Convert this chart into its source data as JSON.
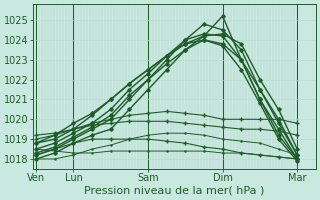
{
  "bg_color": "#c8e8e0",
  "plot_bg_color": "#c8e8e0",
  "grid_color_v": "#b0d4cc",
  "grid_color_h": "#b8d8d0",
  "line_color": "#1e5c28",
  "ylim": [
    1017.5,
    1025.8
  ],
  "ylabel_ticks": [
    1018,
    1019,
    1020,
    1021,
    1022,
    1023,
    1024,
    1025
  ],
  "xlabel": "Pression niveau de la mer( hPa )",
  "xtick_labels": [
    "Ven",
    "Lun",
    "Sam",
    "Dim",
    "Mar"
  ],
  "xtick_positions": [
    0,
    12,
    36,
    60,
    84
  ],
  "xlim": [
    -1,
    90
  ],
  "label_fontsize": 8,
  "tick_fontsize": 7,
  "series": [
    {
      "x": [
        0,
        6,
        12,
        18,
        24,
        30,
        36,
        42,
        48,
        54,
        60,
        66,
        72,
        78,
        84
      ],
      "y": [
        1018.0,
        1018.3,
        1018.8,
        1019.2,
        1019.5,
        1020.5,
        1021.5,
        1022.5,
        1023.5,
        1024.2,
        1025.2,
        1023.0,
        1021.0,
        1019.5,
        1018.0
      ],
      "lw": 1.0,
      "marker": "D",
      "ms": 1.8
    },
    {
      "x": [
        0,
        6,
        12,
        18,
        24,
        30,
        36,
        42,
        48,
        54,
        60,
        66,
        72,
        78,
        84
      ],
      "y": [
        1018.2,
        1018.5,
        1019.0,
        1019.5,
        1020.0,
        1021.0,
        1022.0,
        1023.0,
        1024.0,
        1024.8,
        1024.5,
        1023.5,
        1021.5,
        1020.0,
        1018.2
      ],
      "lw": 1.0,
      "marker": "D",
      "ms": 1.8
    },
    {
      "x": [
        0,
        6,
        12,
        18,
        24,
        30,
        36,
        42,
        48,
        54,
        60,
        66,
        72,
        78,
        84
      ],
      "y": [
        1018.5,
        1018.8,
        1019.3,
        1019.8,
        1020.5,
        1021.5,
        1022.3,
        1023.2,
        1024.0,
        1024.3,
        1024.2,
        1023.0,
        1021.0,
        1019.2,
        1018.0
      ],
      "lw": 1.0,
      "marker": "D",
      "ms": 1.8
    },
    {
      "x": [
        0,
        6,
        12,
        18,
        24,
        30,
        36,
        42,
        48,
        54,
        60,
        66,
        72,
        78,
        84
      ],
      "y": [
        1018.8,
        1019.0,
        1019.5,
        1020.2,
        1021.0,
        1021.8,
        1022.5,
        1023.2,
        1023.8,
        1024.0,
        1023.8,
        1023.0,
        1021.5,
        1019.8,
        1018.2
      ],
      "lw": 1.0,
      "marker": "D",
      "ms": 1.8
    },
    {
      "x": [
        0,
        6,
        12,
        18,
        24,
        30,
        36,
        42,
        48,
        54,
        60,
        66,
        72,
        78,
        84
      ],
      "y": [
        1018.3,
        1018.6,
        1019.1,
        1019.6,
        1020.2,
        1021.2,
        1022.0,
        1022.8,
        1023.5,
        1024.0,
        1023.7,
        1022.5,
        1020.8,
        1019.0,
        1017.9
      ],
      "lw": 1.0,
      "marker": "D",
      "ms": 1.8
    },
    {
      "x": [
        0,
        6,
        12,
        18,
        24,
        30,
        36,
        42,
        48,
        54,
        60,
        66,
        72,
        78,
        84
      ],
      "y": [
        1019.0,
        1019.2,
        1019.5,
        1019.8,
        1020.0,
        1020.2,
        1020.3,
        1020.4,
        1020.3,
        1020.2,
        1020.0,
        1020.0,
        1020.0,
        1020.0,
        1019.8
      ],
      "lw": 0.8,
      "marker": "+",
      "ms": 2.5
    },
    {
      "x": [
        0,
        6,
        12,
        18,
        24,
        30,
        36,
        42,
        48,
        54,
        60,
        66,
        72,
        78,
        84
      ],
      "y": [
        1019.2,
        1019.3,
        1019.5,
        1019.7,
        1019.8,
        1019.9,
        1019.9,
        1019.9,
        1019.8,
        1019.7,
        1019.6,
        1019.5,
        1019.5,
        1019.4,
        1019.2
      ],
      "lw": 0.8,
      "marker": "+",
      "ms": 2.5
    },
    {
      "x": [
        0,
        6,
        12,
        18,
        24,
        30,
        36,
        42,
        48,
        54,
        60,
        66,
        72,
        78,
        84
      ],
      "y": [
        1018.2,
        1018.5,
        1018.8,
        1019.0,
        1019.0,
        1019.0,
        1019.0,
        1018.9,
        1018.8,
        1018.6,
        1018.5,
        1018.3,
        1018.2,
        1018.1,
        1018.0
      ],
      "lw": 0.8,
      "marker": "+",
      "ms": 2.5
    },
    {
      "x": [
        0,
        6,
        12,
        18,
        24,
        30,
        36,
        42,
        48,
        54,
        60,
        66,
        72,
        78,
        84
      ],
      "y": [
        1018.0,
        1018.0,
        1018.2,
        1018.5,
        1018.7,
        1019.0,
        1019.2,
        1019.3,
        1019.3,
        1019.2,
        1019.0,
        1018.9,
        1018.8,
        1018.5,
        1018.2
      ],
      "lw": 0.7,
      "marker": ".",
      "ms": 1.5
    },
    {
      "x": [
        0,
        6,
        12,
        18,
        24,
        30,
        36,
        42,
        48,
        54,
        60,
        66,
        72,
        78,
        84
      ],
      "y": [
        1018.5,
        1018.4,
        1018.3,
        1018.3,
        1018.4,
        1018.4,
        1018.4,
        1018.4,
        1018.4,
        1018.4,
        1018.3,
        1018.3,
        1018.2,
        1018.1,
        1018.0
      ],
      "lw": 0.7,
      "marker": ".",
      "ms": 1.5
    },
    {
      "x": [
        0,
        6,
        12,
        18,
        24,
        30,
        36,
        42,
        48,
        54,
        60,
        66,
        72,
        78,
        84
      ],
      "y": [
        1018.8,
        1019.2,
        1019.8,
        1020.3,
        1021.0,
        1021.8,
        1022.5,
        1023.2,
        1023.8,
        1024.2,
        1024.3,
        1023.8,
        1022.0,
        1020.5,
        1018.5
      ],
      "lw": 1.0,
      "marker": "D",
      "ms": 1.8
    }
  ],
  "vlines": [
    0,
    12,
    36,
    60,
    84
  ],
  "num_v_gridlines": 88
}
